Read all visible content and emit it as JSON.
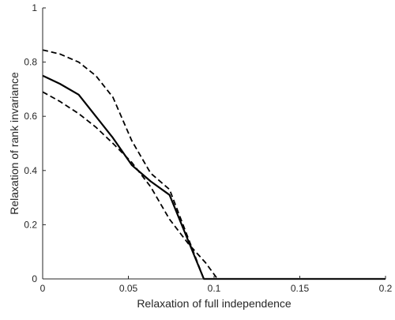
{
  "chart_data": {
    "type": "line",
    "title": "",
    "xlabel": "Relaxation of full independence",
    "ylabel": "Relaxation of rank invariance",
    "xlim": [
      0,
      0.2
    ],
    "ylim": [
      0,
      1
    ],
    "grid": false,
    "legend": "none",
    "x_ticks": [
      0,
      0.05,
      0.1,
      0.15,
      0.2
    ],
    "x_tick_labels": [
      "0",
      "0.05",
      "0.1",
      "0.15",
      "0.2"
    ],
    "y_ticks": [
      0,
      0.2,
      0.4,
      0.6,
      0.8,
      1
    ],
    "y_tick_labels": [
      "0",
      "0.2",
      "0.4",
      "0.6",
      "0.8",
      "1"
    ],
    "series": [
      {
        "style": "solid",
        "color": "#000000",
        "points": [
          [
            0,
            0.75
          ],
          [
            0.01,
            0.72
          ],
          [
            0.021,
            0.68
          ],
          [
            0.031,
            0.6
          ],
          [
            0.041,
            0.52
          ],
          [
            0.052,
            0.42
          ],
          [
            0.063,
            0.36
          ],
          [
            0.074,
            0.31
          ],
          [
            0.094,
            0.0
          ],
          [
            0.2,
            0.0
          ]
        ]
      },
      {
        "style": "dashed",
        "color": "#000000",
        "points": [
          [
            0,
            0.845
          ],
          [
            0.01,
            0.83
          ],
          [
            0.021,
            0.8
          ],
          [
            0.031,
            0.75
          ],
          [
            0.041,
            0.67
          ],
          [
            0.052,
            0.51
          ],
          [
            0.063,
            0.39
          ],
          [
            0.074,
            0.33
          ],
          [
            0.094,
            0.0
          ],
          [
            0.2,
            0.0
          ]
        ]
      },
      {
        "style": "dashed",
        "color": "#000000",
        "points": [
          [
            0,
            0.69
          ],
          [
            0.01,
            0.655
          ],
          [
            0.021,
            0.61
          ],
          [
            0.031,
            0.56
          ],
          [
            0.041,
            0.5
          ],
          [
            0.052,
            0.43
          ],
          [
            0.063,
            0.34
          ],
          [
            0.074,
            0.22
          ],
          [
            0.085,
            0.13
          ],
          [
            0.095,
            0.06
          ],
          [
            0.102,
            0.0
          ],
          [
            0.2,
            0.0
          ]
        ]
      }
    ]
  }
}
